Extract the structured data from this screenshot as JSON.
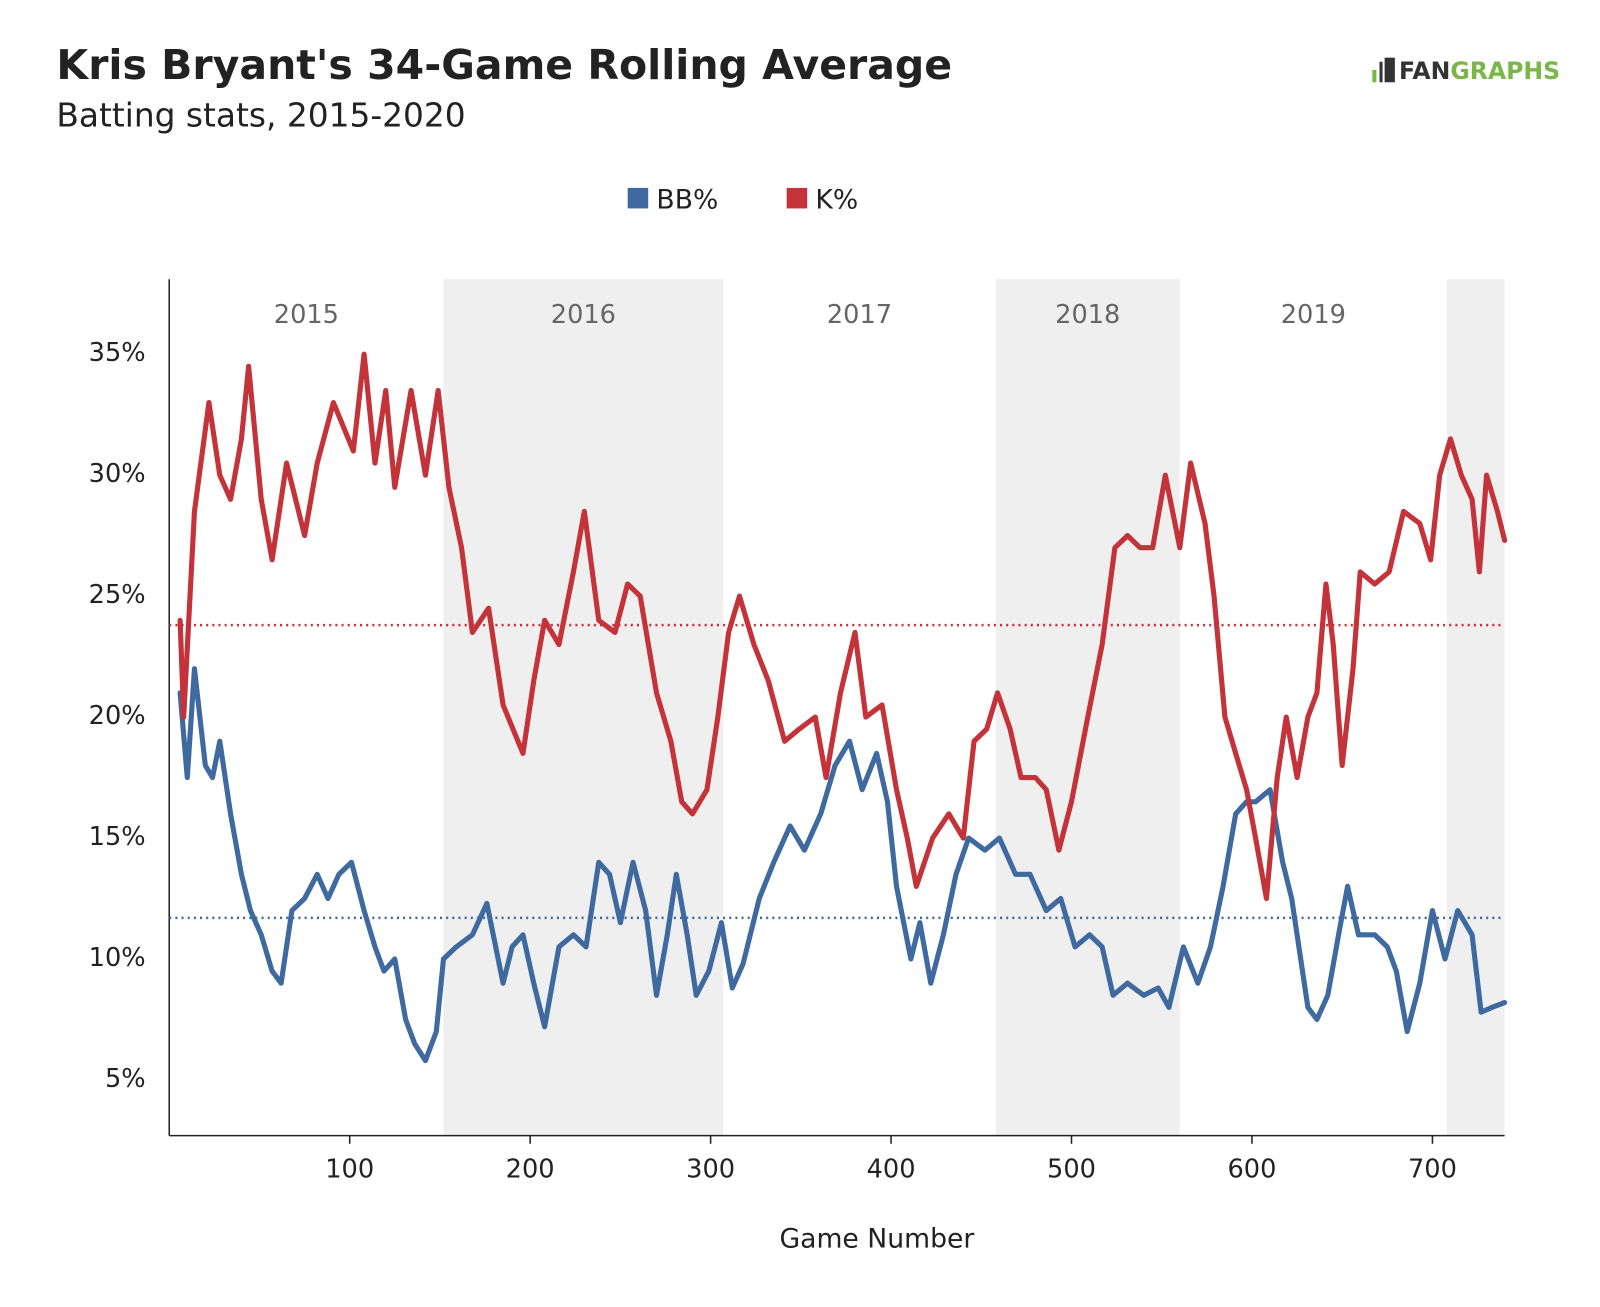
{
  "chart_data": {
    "type": "line",
    "title": "Kris Bryant's 34-Game Rolling Average",
    "subtitle": "Batting stats, 2015-2020",
    "logo": [
      "FAN",
      "GRAPHS"
    ],
    "x_label": "Game Number",
    "xlim": [
      0,
      740
    ],
    "xticks": [
      100,
      200,
      300,
      400,
      500,
      600,
      700
    ],
    "ylim": [
      2.7,
      38.1
    ],
    "yticks": [
      {
        "value": 5,
        "label": "5%"
      },
      {
        "value": 10,
        "label": "10%"
      },
      {
        "value": 15,
        "label": "15%"
      },
      {
        "value": 20,
        "label": "20%"
      },
      {
        "value": 25,
        "label": "25%"
      },
      {
        "value": 30,
        "label": "30%"
      },
      {
        "value": 35,
        "label": "35%"
      }
    ],
    "year_bands": {
      "labels": [
        "2015",
        "2016",
        "2017",
        "2018",
        "2019",
        null
      ],
      "edges": [
        0,
        152,
        307,
        458,
        560,
        708,
        740
      ],
      "color": "#efefef"
    },
    "series": [
      {
        "name": "BB%",
        "color": "#3f6aa0",
        "average": 11.7,
        "x": [
          6,
          10,
          14,
          20,
          24,
          28,
          34,
          40,
          45,
          51,
          57,
          62,
          68,
          75,
          82,
          88,
          94,
          101,
          108,
          114,
          119,
          125,
          131,
          136,
          142,
          148,
          152,
          159,
          168,
          176,
          185,
          190,
          196,
          202,
          208,
          216,
          224,
          231,
          238,
          244,
          250,
          257,
          264,
          270,
          276,
          281,
          287,
          292,
          299,
          306,
          312,
          318,
          327,
          335,
          344,
          352,
          361,
          369,
          377,
          384,
          392,
          398,
          403,
          411,
          416,
          422,
          429,
          436,
          443,
          452,
          460,
          469,
          477,
          486,
          494,
          502,
          510,
          517,
          523,
          531,
          540,
          548,
          554,
          562,
          570,
          577,
          584,
          591,
          597,
          602,
          610,
          617,
          622,
          631,
          636,
          642,
          648,
          653,
          659,
          668,
          675,
          680,
          686,
          693,
          700,
          707,
          714,
          722,
          727,
          733,
          740
        ],
        "values": [
          21,
          17.5,
          22,
          18,
          17.5,
          19,
          16,
          13.5,
          12,
          11,
          9.5,
          9,
          12,
          12.5,
          13.5,
          12.5,
          13.5,
          14,
          12,
          10.5,
          9.5,
          10,
          7.5,
          6.5,
          5.8,
          7,
          10,
          10.5,
          11,
          12.3,
          9,
          10.5,
          11,
          9,
          7.2,
          10.5,
          11,
          10.5,
          14,
          13.5,
          11.5,
          14,
          12,
          8.5,
          11,
          13.5,
          11,
          8.5,
          9.5,
          11.5,
          8.8,
          9.8,
          12.5,
          14,
          15.5,
          14.5,
          16,
          18,
          19,
          17,
          18.5,
          16.5,
          13,
          10,
          11.5,
          9,
          11,
          13.5,
          15,
          14.5,
          15,
          13.5,
          13.5,
          12,
          12.5,
          10.5,
          11,
          10.5,
          8.5,
          9,
          8.5,
          8.8,
          8,
          10.5,
          9,
          10.5,
          13,
          16,
          16.5,
          16.5,
          17,
          14,
          12.5,
          8,
          7.5,
          8.5,
          11,
          13,
          11,
          11,
          10.5,
          9.5,
          7,
          9,
          12,
          10,
          12,
          11,
          7.8,
          8,
          8.2
        ]
      },
      {
        "name": "K%",
        "color": "#c4323a",
        "average": 23.8,
        "x": [
          6,
          8,
          14,
          22,
          28,
          34,
          40,
          44,
          51,
          57,
          65,
          75,
          82,
          91,
          102,
          108,
          114,
          120,
          125,
          134,
          142,
          149,
          155,
          162,
          168,
          177,
          185,
          196,
          202,
          208,
          216,
          224,
          230,
          238,
          247,
          254,
          261,
          270,
          278,
          284,
          290,
          298,
          304,
          310,
          316,
          324,
          332,
          341,
          349,
          358,
          364,
          372,
          380,
          386,
          395,
          403,
          409,
          414,
          423,
          432,
          440,
          446,
          453,
          459,
          466,
          472,
          480,
          486,
          493,
          500,
          509,
          517,
          524,
          531,
          538,
          545,
          552,
          560,
          566,
          574,
          579,
          585,
          591,
          597,
          602,
          608,
          614,
          619,
          625,
          631,
          636,
          641,
          645,
          650,
          656,
          660,
          668,
          676,
          684,
          693,
          699,
          704,
          710,
          716,
          722,
          726,
          730,
          736,
          740
        ],
        "values": [
          24,
          20,
          28.5,
          33,
          30,
          29,
          31.5,
          34.5,
          29,
          26.5,
          30.5,
          27.5,
          30.5,
          33,
          31,
          35,
          30.5,
          33.5,
          29.5,
          33.5,
          30,
          33.5,
          29.5,
          27,
          23.5,
          24.5,
          20.5,
          18.5,
          21.5,
          24,
          23,
          26,
          28.5,
          24,
          23.5,
          25.5,
          25,
          21,
          19,
          16.5,
          16,
          17,
          20,
          23.5,
          25,
          23,
          21.5,
          19,
          19.5,
          20,
          17.5,
          21,
          23.5,
          20,
          20.5,
          17,
          15,
          13,
          15,
          16,
          15,
          19,
          19.5,
          21,
          19.5,
          17.5,
          17.5,
          17,
          14.5,
          16.5,
          20,
          23,
          27,
          27.5,
          27,
          27,
          30,
          27,
          30.5,
          28,
          25,
          20,
          18.5,
          17,
          15,
          12.5,
          17.5,
          20,
          17.5,
          20,
          21,
          25.5,
          23,
          18,
          22,
          26,
          25.5,
          26,
          28.5,
          28,
          26.5,
          30,
          31.5,
          30,
          29,
          26,
          30,
          28.5,
          27.3
        ]
      }
    ]
  }
}
